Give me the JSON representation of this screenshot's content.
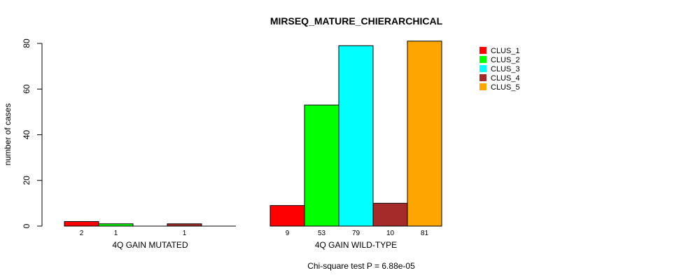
{
  "chart_data": {
    "type": "bar",
    "title": "MIRSEQ_MATURE_CHIERARCHICAL",
    "ylabel": "number of cases",
    "ylim": [
      0,
      80
    ],
    "yticks": [
      0,
      20,
      40,
      60,
      80
    ],
    "groups": [
      {
        "label": "4Q GAIN MUTATED",
        "values": [
          2,
          1,
          0,
          1,
          0
        ],
        "value_labels": [
          "2",
          "1",
          "",
          "1",
          ""
        ]
      },
      {
        "label": "4Q GAIN WILD-TYPE",
        "values": [
          9,
          53,
          79,
          10,
          81
        ],
        "value_labels": [
          "9",
          "53",
          "79",
          "10",
          "81"
        ]
      }
    ],
    "series": [
      {
        "name": "CLUS_1",
        "color": "#ff0000"
      },
      {
        "name": "CLUS_2",
        "color": "#00ff00"
      },
      {
        "name": "CLUS_3",
        "color": "#00ffff"
      },
      {
        "name": "CLUS_4",
        "color": "#a52a2a"
      },
      {
        "name": "CLUS_5",
        "color": "#ffa500"
      }
    ],
    "legend_position": "top-right",
    "footnote": "Chi-square test P = 6.88e-05"
  }
}
